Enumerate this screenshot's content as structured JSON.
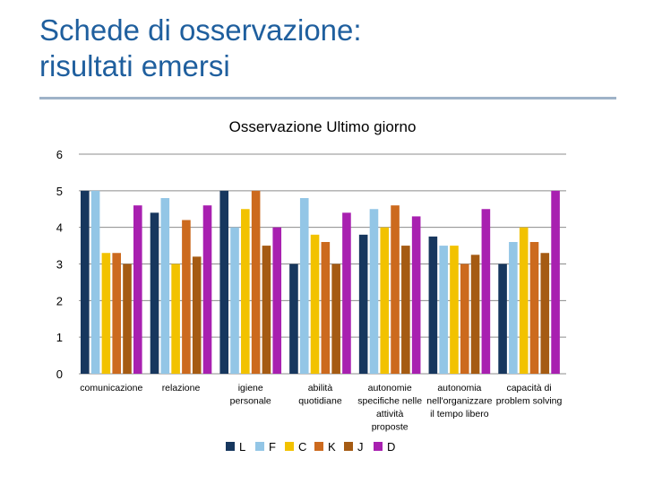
{
  "slide": {
    "title_line1": "Schede di osservazione:",
    "title_line2": "risultati emersi"
  },
  "chart_data": {
    "type": "bar",
    "title": "Osservazione Ultimo giorno",
    "xlabel": "",
    "ylabel": "",
    "ylim": [
      0,
      6
    ],
    "yticks": [
      0,
      1,
      2,
      3,
      4,
      5,
      6
    ],
    "grid": true,
    "legend": "bottom",
    "categories": [
      [
        "comunicazione"
      ],
      [
        "relazione"
      ],
      [
        "igiene",
        "personale"
      ],
      [
        "abilità",
        "quotidiane"
      ],
      [
        "autonomie",
        "specifiche nelle",
        "attività",
        "proposte"
      ],
      [
        "autonomia",
        "nell'organizzare",
        "il tempo libero"
      ],
      [
        "capacità di",
        "problem solving"
      ]
    ],
    "series": [
      {
        "name": "L",
        "color": "#17375e",
        "values": [
          5,
          4.4,
          5,
          3,
          3.8,
          3.75,
          3
        ]
      },
      {
        "name": "F",
        "color": "#93c6e6",
        "values": [
          5,
          4.8,
          4,
          4.8,
          4.5,
          3.5,
          3.6
        ]
      },
      {
        "name": "C",
        "color": "#f2c200",
        "values": [
          3.3,
          3,
          4.5,
          3.8,
          4,
          3.5,
          4
        ]
      },
      {
        "name": "K",
        "color": "#cc6a1e",
        "values": [
          3.3,
          4.2,
          5,
          3.6,
          4.6,
          3,
          3.6
        ]
      },
      {
        "name": "J",
        "color": "#a55b13",
        "values": [
          3,
          3.2,
          3.5,
          3,
          3.5,
          3.25,
          3.3
        ]
      },
      {
        "name": "D",
        "color": "#a820b0",
        "values": [
          4.6,
          4.6,
          4,
          4.4,
          4.3,
          4.5,
          5
        ]
      }
    ]
  }
}
